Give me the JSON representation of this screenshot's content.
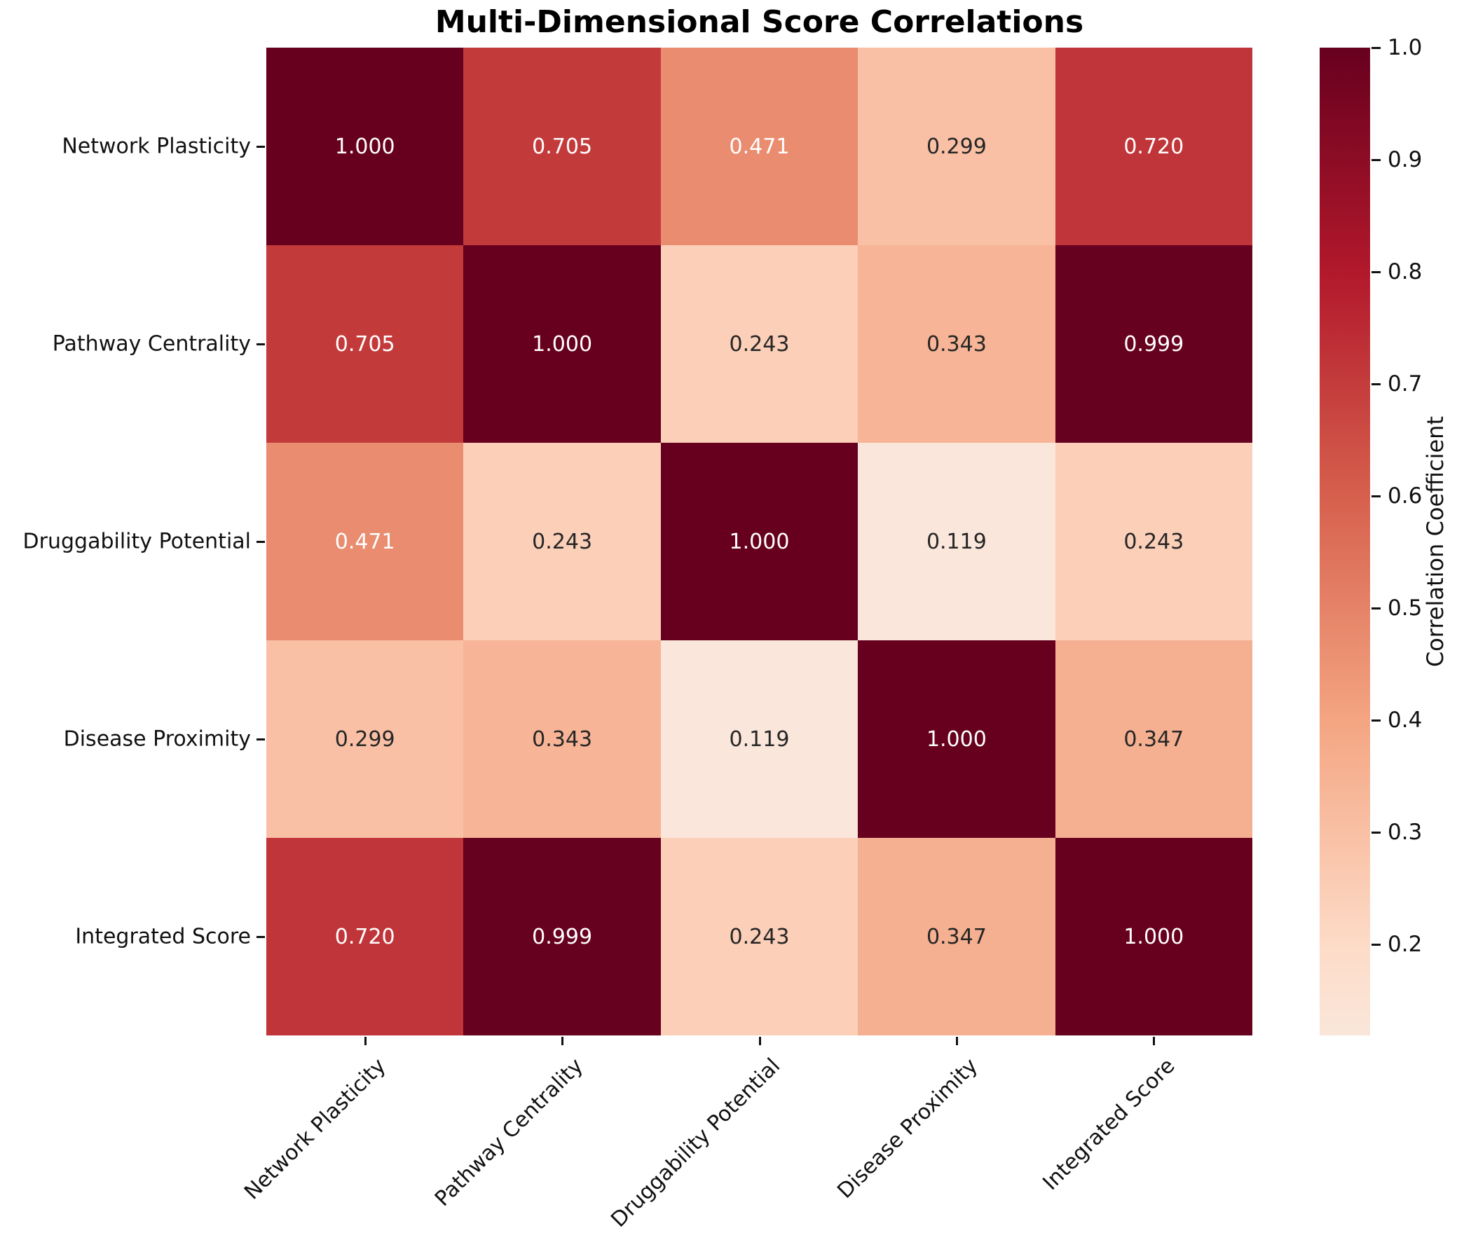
{
  "title": "Multi-Dimensional Score Correlations",
  "chart_data": {
    "type": "heatmap",
    "title": "Multi-Dimensional Score Correlations",
    "categories": [
      "Network Plasticity",
      "Pathway Centrality",
      "Druggability Potential",
      "Disease Proximity",
      "Integrated Score"
    ],
    "values": [
      [
        1.0,
        0.705,
        0.471,
        0.299,
        0.72
      ],
      [
        0.705,
        1.0,
        0.243,
        0.343,
        0.999
      ],
      [
        0.471,
        0.243,
        1.0,
        0.119,
        0.243
      ],
      [
        0.299,
        0.343,
        0.119,
        1.0,
        0.347
      ],
      [
        0.72,
        0.999,
        0.243,
        0.347,
        1.0
      ]
    ],
    "annotations": [
      [
        "1.000",
        "0.705",
        "0.471",
        "0.299",
        "0.720"
      ],
      [
        "0.705",
        "1.000",
        "0.243",
        "0.343",
        "0.999"
      ],
      [
        "0.471",
        "0.243",
        "1.000",
        "0.119",
        "0.243"
      ],
      [
        "0.299",
        "0.343",
        "0.119",
        "1.000",
        "0.347"
      ],
      [
        "0.720",
        "0.999",
        "0.243",
        "0.347",
        "1.000"
      ]
    ],
    "cell_colors": [
      [
        "#67001f",
        "#c33a3b",
        "#e98c6f",
        "#f9c0a5",
        "#c03539"
      ],
      [
        "#c33a3b",
        "#67001f",
        "#fbcfb8",
        "#f7b496",
        "#670120"
      ],
      [
        "#e98c6f",
        "#fbcfb8",
        "#67001f",
        "#fae6da",
        "#fbcfb8"
      ],
      [
        "#f9c0a5",
        "#f7b496",
        "#fae6da",
        "#67001f",
        "#f5b091"
      ],
      [
        "#c03539",
        "#670120",
        "#fbcfb8",
        "#f5b091",
        "#67001f"
      ]
    ],
    "cell_text_tones": [
      [
        "light",
        "light",
        "light",
        "dark",
        "light"
      ],
      [
        "light",
        "light",
        "dark",
        "dark",
        "light"
      ],
      [
        "light",
        "dark",
        "light",
        "dark",
        "dark"
      ],
      [
        "dark",
        "dark",
        "dark",
        "light",
        "dark"
      ],
      [
        "light",
        "light",
        "dark",
        "dark",
        "light"
      ]
    ],
    "annotation_colors": {
      "light": "#ffffff",
      "dark": "#262626"
    },
    "vmin": 0.119,
    "vmax": 1.0,
    "colorbar": {
      "label": "Correlation Coefficient",
      "ticks": [
        "1.0",
        "0.9",
        "0.8",
        "0.7",
        "0.6",
        "0.5",
        "0.4",
        "0.3",
        "0.2"
      ],
      "tick_values": [
        1.0,
        0.9,
        0.8,
        0.7,
        0.6,
        0.5,
        0.4,
        0.3,
        0.2
      ],
      "gradient_stops": [
        {
          "pos": 0.0,
          "color": "#67001f"
        },
        {
          "pos": 22.7,
          "color": "#b2182b"
        },
        {
          "pos": 45.4,
          "color": "#d6604d"
        },
        {
          "pos": 68.1,
          "color": "#f4a582"
        },
        {
          "pos": 90.8,
          "color": "#fddbc7"
        },
        {
          "pos": 100.0,
          "color": "#fae6da"
        }
      ]
    },
    "layout_hints": {
      "x_label_rotation_deg": 45,
      "grid": false,
      "legend_position": "right-colorbar"
    }
  }
}
